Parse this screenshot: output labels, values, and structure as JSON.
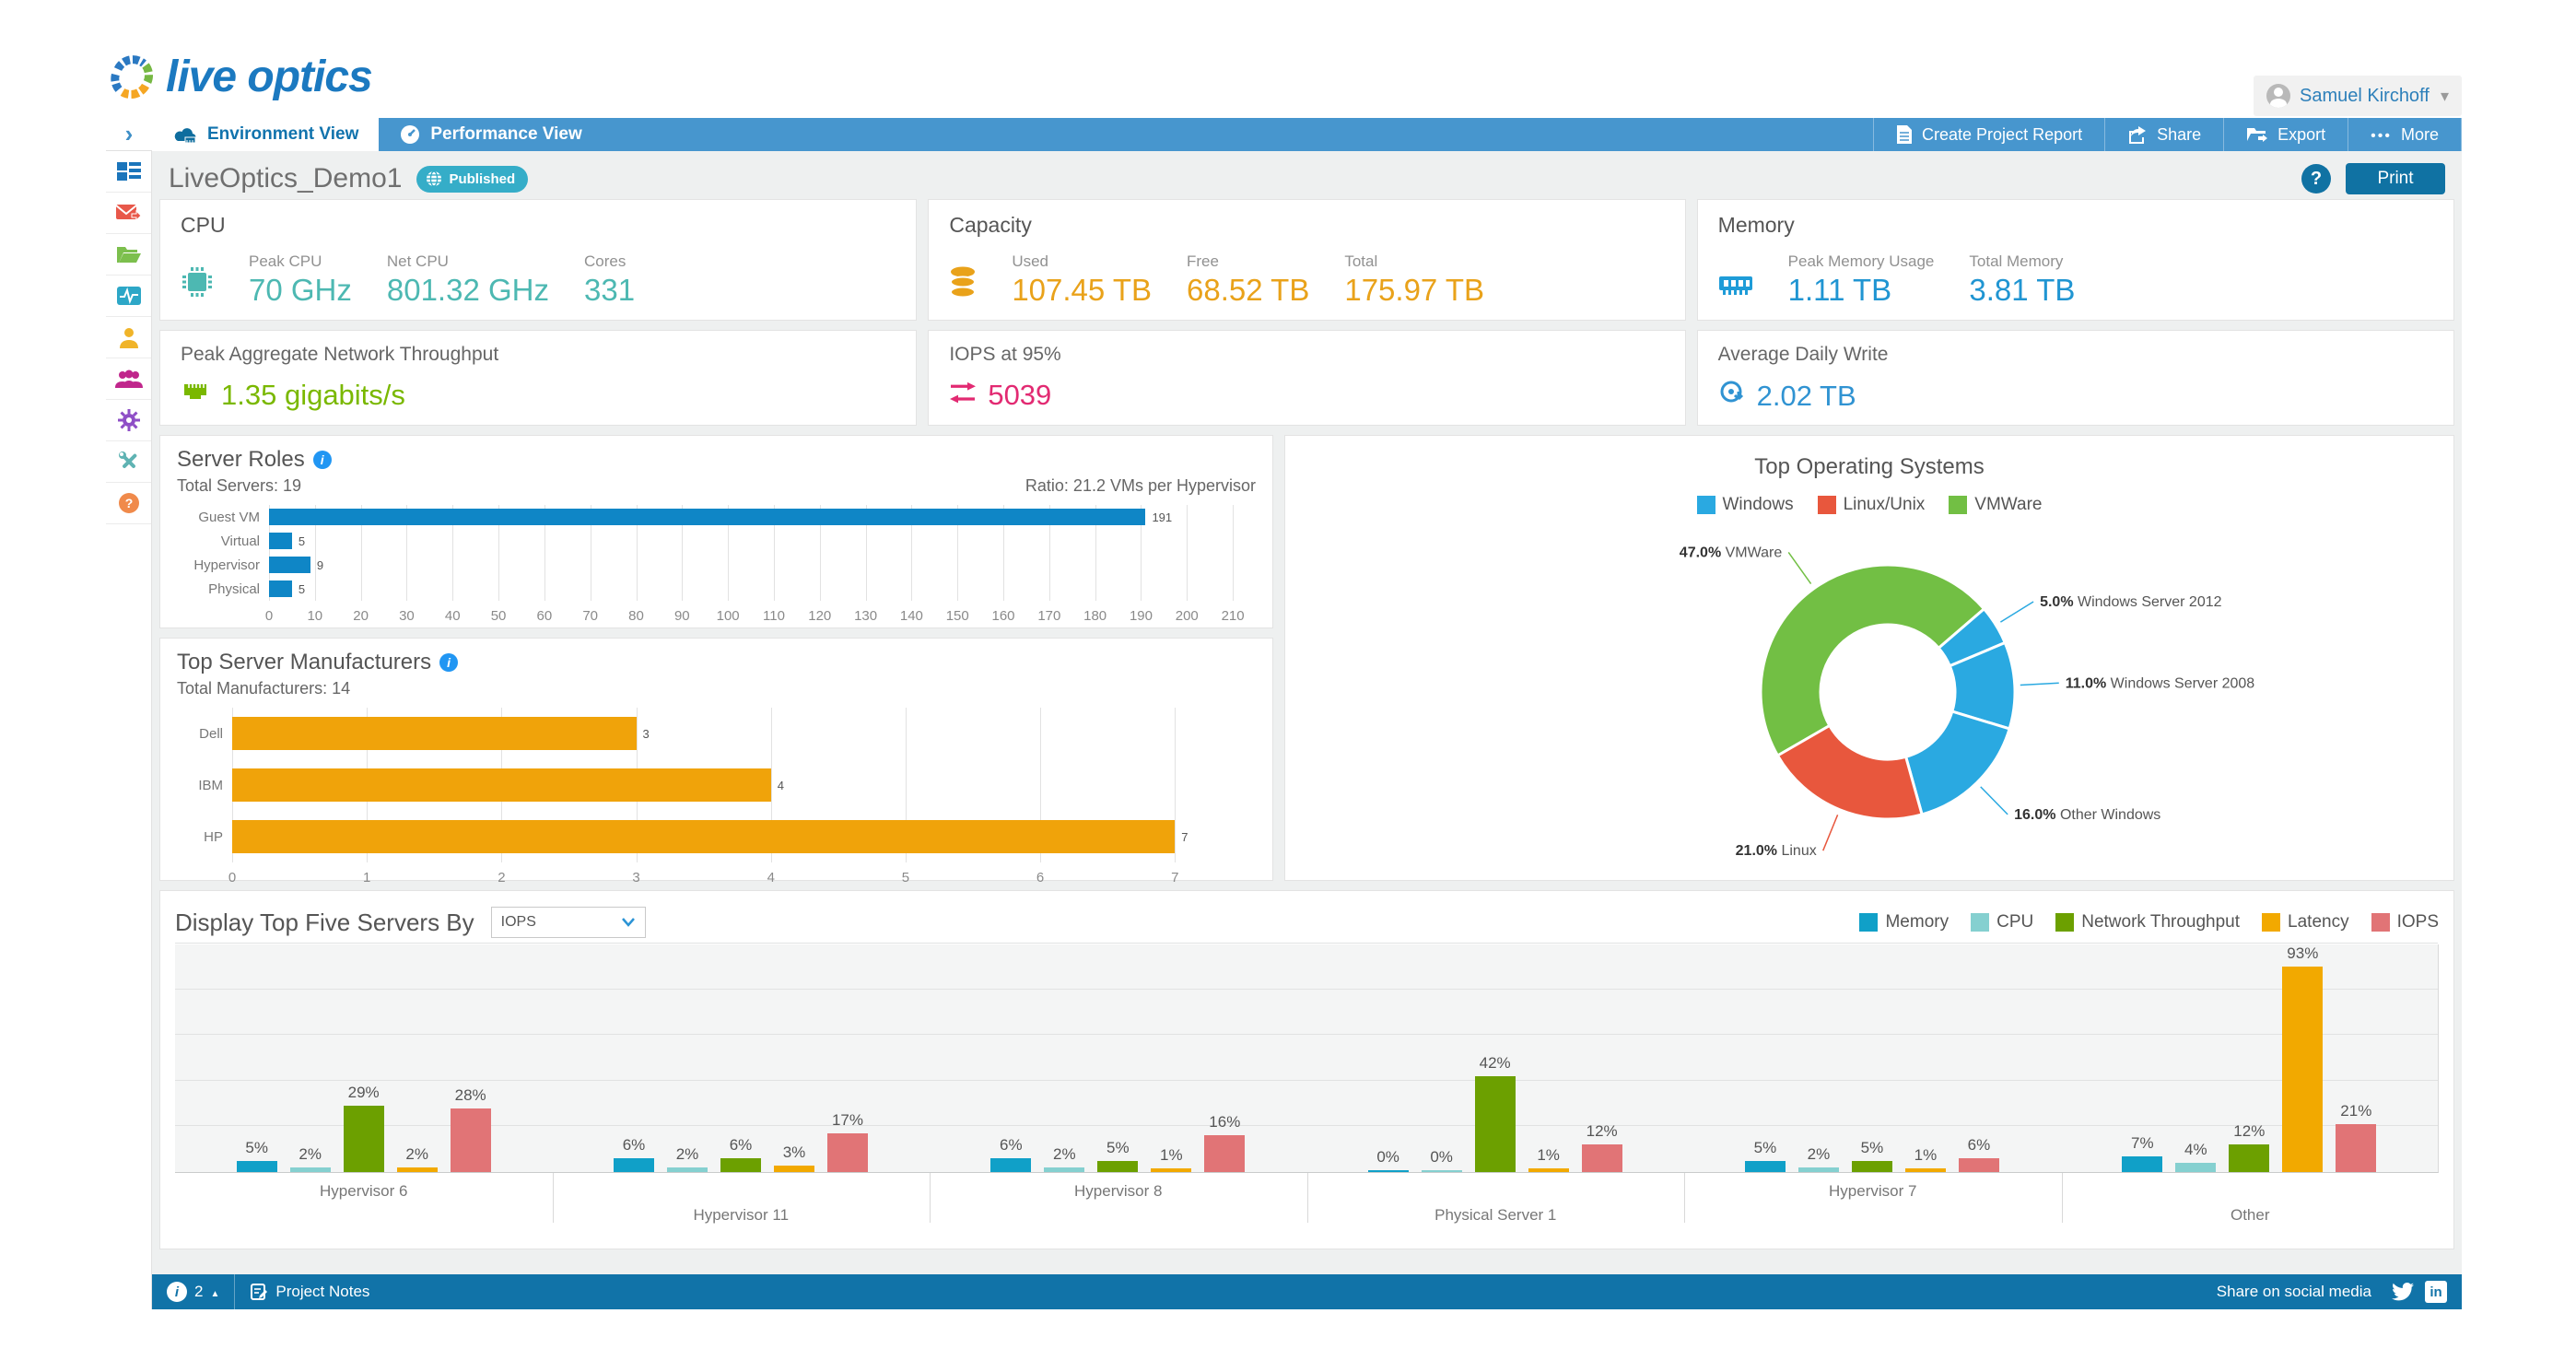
{
  "header": {
    "logo": "live optics",
    "user": {
      "name": "Samuel Kirchoff"
    }
  },
  "nav": {
    "tabs": [
      {
        "label": "Environment View",
        "active": true
      },
      {
        "label": "Performance View",
        "active": false
      }
    ],
    "actions": [
      {
        "label": "Create Project Report"
      },
      {
        "label": "Share"
      },
      {
        "label": "Export"
      },
      {
        "label": "More"
      }
    ]
  },
  "toolbar": {
    "title": "LiveOptics_Demo1",
    "badge": "Published",
    "print_label": "Print"
  },
  "cards": {
    "cpu": {
      "title": "CPU",
      "color": "#4db8b2",
      "metrics": [
        {
          "label": "Peak CPU",
          "value": "70 GHz"
        },
        {
          "label": "Net CPU",
          "value": "801.32 GHz"
        },
        {
          "label": "Cores",
          "value": "331"
        }
      ]
    },
    "capacity": {
      "title": "Capacity",
      "color": "#e9a21a",
      "metrics": [
        {
          "label": "Used",
          "value": "107.45 TB"
        },
        {
          "label": "Free",
          "value": "68.52 TB"
        },
        {
          "label": "Total",
          "value": "175.97 TB"
        }
      ]
    },
    "memory": {
      "title": "Memory",
      "color": "#2095d2",
      "metrics": [
        {
          "label": "Peak Memory Usage",
          "value": "1.11 TB"
        },
        {
          "label": "Total Memory",
          "value": "3.81 TB"
        }
      ]
    },
    "network": {
      "title": "Peak Aggregate Network Throughput",
      "color": "#7ab800",
      "value": "1.35 gigabits/s"
    },
    "iops": {
      "title": "IOPS at 95%",
      "color": "#e22a72",
      "value": "5039"
    },
    "daily_write": {
      "title": "Average Daily Write",
      "color": "#3093d2",
      "value": "2.02 TB"
    }
  },
  "chart_data": [
    {
      "id": "server_roles",
      "type": "bar",
      "orientation": "horizontal",
      "title": "Server Roles",
      "subtitle_left": "Total Servers: 19",
      "subtitle_right": "Ratio: 21.2 VMs per Hypervisor",
      "categories": [
        "Guest VM",
        "Virtual",
        "Hypervisor",
        "Physical"
      ],
      "values": [
        191,
        5,
        9,
        5
      ],
      "bar_color": "#0f86c6",
      "xlim": [
        0,
        215
      ],
      "tick_step": 10,
      "tick_max": 210,
      "grid": true
    },
    {
      "id": "manufacturers",
      "type": "bar",
      "orientation": "horizontal",
      "title": "Top Server Manufacturers",
      "subtitle_left": "Total Manufacturers: 14",
      "categories": [
        "Dell",
        "IBM",
        "HP"
      ],
      "values": [
        3,
        4,
        7
      ],
      "bar_color": "#f0a30a",
      "xlim": [
        0,
        7.6
      ],
      "tick_step": 1,
      "tick_max": 7,
      "grid": true
    },
    {
      "id": "os_donut",
      "type": "pie",
      "title": "Top Operating Systems",
      "legend": [
        {
          "label": "Windows",
          "color": "#2aa9e1"
        },
        {
          "label": "Linux/Unix",
          "color": "#e8573d"
        },
        {
          "label": "VMWare",
          "color": "#72bf44"
        }
      ],
      "start_angle_deg": 240,
      "slices": [
        {
          "label": "VMWare",
          "pct": 47.0,
          "color": "#72bf44"
        },
        {
          "label": "Windows Server 2012",
          "pct": 5.0,
          "color": "#2aa9e1"
        },
        {
          "label": "Windows Server 2008",
          "pct": 11.0,
          "color": "#2aa9e1"
        },
        {
          "label": "Other Windows",
          "pct": 16.0,
          "color": "#2aa9e1"
        },
        {
          "label": "Linux",
          "pct": 21.0,
          "color": "#e8573d"
        }
      ]
    },
    {
      "id": "top_servers",
      "type": "bar",
      "orientation": "vertical-grouped",
      "control_label": "Display Top Five Servers By",
      "control_value": "IOPS",
      "categories": [
        "Hypervisor 6",
        "Hypervisor 11",
        "Hypervisor 8",
        "Physical Server 1",
        "Hypervisor 7",
        "Other"
      ],
      "series": [
        {
          "name": "Memory",
          "color": "#10a0c8",
          "values": [
            5,
            6,
            6,
            0,
            5,
            7
          ]
        },
        {
          "name": "CPU",
          "color": "#85d0d0",
          "values": [
            2,
            2,
            2,
            0,
            2,
            4
          ]
        },
        {
          "name": "Network Throughput",
          "color": "#6ca000",
          "values": [
            29,
            6,
            5,
            42,
            5,
            12
          ]
        },
        {
          "name": "Latency",
          "color": "#f2a900",
          "values": [
            2,
            3,
            1,
            1,
            1,
            93
          ]
        },
        {
          "name": "IOPS",
          "color": "#e17476",
          "values": [
            28,
            17,
            16,
            12,
            6,
            21
          ]
        }
      ],
      "ylim": [
        0,
        100
      ],
      "unit": "%",
      "grid_step_pct": 20
    }
  ],
  "footer": {
    "notification_count": "2",
    "notes_label": "Project Notes",
    "share_label": "Share on social media"
  }
}
